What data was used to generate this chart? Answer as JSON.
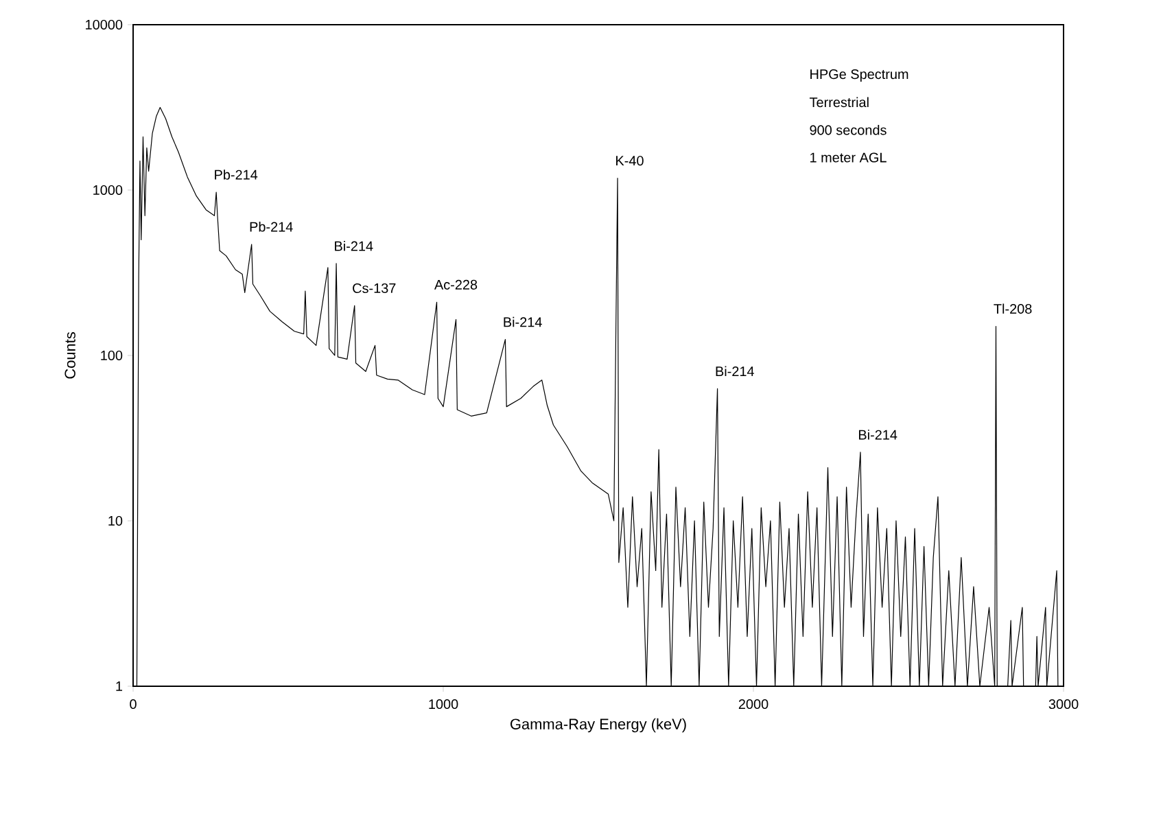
{
  "chart_data": {
    "type": "line",
    "xlabel": "Gamma-Ray Energy (keV)",
    "ylabel": "Counts",
    "log": "y",
    "xlim": [
      0,
      3000
    ],
    "xticks": [
      0,
      1000,
      2000,
      3000
    ],
    "ylim": [
      1,
      10000
    ],
    "yticks": [
      1,
      10,
      100,
      1000,
      10000
    ],
    "grid": false,
    "marker": "none",
    "line_style": "solid",
    "series": [
      {
        "color": "#000000",
        "x": [
          0,
          12,
          18,
          22,
          26,
          32,
          38,
          44,
          50,
          62,
          75,
          87,
          105,
          125,
          146,
          175,
          204,
          235,
          262,
          268,
          272,
          279,
          300,
          330,
          352,
          360,
          382,
          386,
          410,
          441,
          480,
          520,
          550,
          555,
          560,
          590,
          628,
          632,
          650,
          655,
          660,
          690,
          714,
          718,
          750,
          780,
          785,
          820,
          854,
          900,
          940,
          979,
          983,
          1000,
          1041,
          1045,
          1090,
          1140,
          1200,
          1204,
          1250,
          1290,
          1318,
          1335,
          1355,
          1400,
          1444,
          1480,
          1532,
          1550,
          1562,
          1566,
          1580,
          1595,
          1610,
          1625,
          1640,
          1655,
          1670,
          1685,
          1695,
          1705,
          1720,
          1735,
          1750,
          1765,
          1780,
          1795,
          1810,
          1825,
          1840,
          1855,
          1870,
          1884,
          1890,
          1905,
          1920,
          1935,
          1950,
          1965,
          1980,
          1995,
          2010,
          2025,
          2040,
          2055,
          2070,
          2085,
          2100,
          2115,
          2130,
          2145,
          2160,
          2175,
          2190,
          2205,
          2220,
          2240,
          2255,
          2270,
          2285,
          2300,
          2315,
          2330,
          2345,
          2355,
          2370,
          2385,
          2400,
          2415,
          2430,
          2445,
          2460,
          2475,
          2490,
          2505,
          2520,
          2535,
          2550,
          2565,
          2580,
          2595,
          2610,
          2630,
          2650,
          2670,
          2690,
          2710,
          2730,
          2760,
          2778,
          2782,
          2786,
          2820,
          2830,
          2834,
          2867,
          2871,
          2910,
          2914,
          2918,
          2942,
          2946,
          2978,
          2982,
          3000
        ],
        "values": [
          1,
          1,
          300,
          1500,
          500,
          2100,
          700,
          1800,
          1300,
          2200,
          2800,
          3160,
          2700,
          2100,
          1700,
          1200,
          920,
          760,
          700,
          970,
          700,
          430,
          400,
          330,
          310,
          240,
          470,
          270,
          230,
          185,
          160,
          140,
          135,
          245,
          130,
          115,
          340,
          110,
          100,
          360,
          98,
          95,
          200,
          90,
          80,
          115,
          76,
          72,
          71,
          62,
          58,
          210,
          55,
          49,
          165,
          47,
          43,
          45,
          125,
          49,
          55,
          65,
          71,
          50,
          38,
          28,
          20,
          17,
          14.5,
          10,
          1180,
          5.6,
          12,
          3,
          14,
          4,
          9,
          1,
          15,
          5,
          27,
          3,
          11,
          1,
          16,
          4,
          12,
          2,
          10,
          1,
          13,
          3,
          9,
          63,
          2,
          12,
          1,
          10,
          3,
          14,
          2,
          9,
          1,
          12,
          4,
          10,
          1,
          13,
          3,
          9,
          1,
          11,
          2,
          15,
          3,
          12,
          1,
          21,
          2,
          14,
          1,
          16,
          3,
          10,
          26,
          2,
          11,
          1,
          12,
          3,
          9,
          1,
          10,
          2,
          8,
          1,
          9,
          1,
          7,
          1,
          6,
          14,
          1,
          5,
          1,
          6,
          1,
          4,
          1,
          3,
          1,
          150,
          1,
          1,
          2.5,
          1,
          3,
          1,
          1,
          2,
          1,
          3,
          1,
          5,
          1,
          1
        ]
      }
    ],
    "annotations": [
      {
        "text": "Pb-214",
        "x": 268,
        "y": 970
      },
      {
        "text": "Pb-214",
        "x": 382,
        "y": 470
      },
      {
        "text": "Bi-214",
        "x": 655,
        "y": 360
      },
      {
        "text": "Cs-137",
        "x": 714,
        "y": 200
      },
      {
        "text": "Ac-228",
        "x": 979,
        "y": 210
      },
      {
        "text": "Bi-214",
        "x": 1200,
        "y": 125
      },
      {
        "text": "K-40",
        "x": 1562,
        "y": 1180
      },
      {
        "text": "Bi-214",
        "x": 1884,
        "y": 63
      },
      {
        "text": "Bi-214",
        "x": 2345,
        "y": 26
      },
      {
        "text": "Tl-208",
        "x": 2782,
        "y": 150
      },
      "HPGe Spectrum",
      "Terrestrial",
      "900 seconds",
      "1 meter AGL"
    ]
  }
}
